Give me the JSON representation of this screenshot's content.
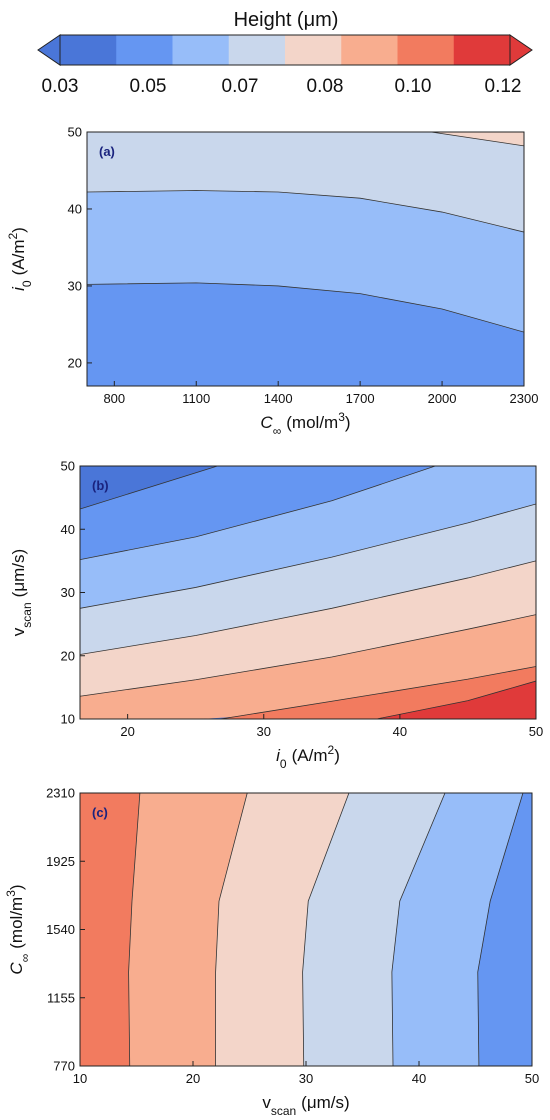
{
  "colorbar": {
    "title": "Height (μm)",
    "tick_labels": [
      "0.03",
      "0.05",
      "0.07",
      "0.08",
      "0.10",
      "0.12"
    ],
    "colors": [
      "#4a76d8",
      "#6596f2",
      "#97bdf9",
      "#c9d7ec",
      "#f3d5c9",
      "#f8ad8f",
      "#f27b5f",
      "#e03a3a"
    ]
  },
  "chart_data": [
    {
      "type": "contour",
      "panel_label": "(a)",
      "xlabel": {
        "main": "C",
        "sub": "∞",
        "units": "(mol/m",
        "sup": "3",
        "tail": ")"
      },
      "ylabel": {
        "main": "i",
        "sub": "0",
        "units": "(A/m",
        "sup": "2",
        "tail": ")"
      },
      "xlim": [
        700,
        2300
      ],
      "ylim": [
        17,
        50
      ],
      "xticks": [
        800,
        1100,
        1400,
        1700,
        2000,
        2300
      ],
      "yticks": [
        20,
        30,
        40,
        50
      ],
      "bands": [
        {
          "level": "0.05–0.06",
          "color": "#6596f2",
          "lower": [
            [
              700,
              17
            ],
            [
              2300,
              17
            ]
          ],
          "upper": [
            [
              700,
              30.2
            ],
            [
              1100,
              30.4
            ],
            [
              1400,
              30
            ],
            [
              1700,
              29
            ],
            [
              2000,
              27
            ],
            [
              2300,
              24
            ]
          ]
        },
        {
          "level": "0.06–0.07",
          "color": "#97bdf9",
          "lower": [
            [
              700,
              30.2
            ],
            [
              1100,
              30.4
            ],
            [
              1400,
              30
            ],
            [
              1700,
              29
            ],
            [
              2000,
              27
            ],
            [
              2300,
              24
            ]
          ],
          "upper": [
            [
              700,
              42.2
            ],
            [
              1100,
              42.4
            ],
            [
              1400,
              42.2
            ],
            [
              1700,
              41.4
            ],
            [
              2000,
              39.6
            ],
            [
              2300,
              37
            ]
          ]
        },
        {
          "level": "0.07–0.08",
          "color": "#c9d7ec",
          "lower": [
            [
              700,
              42.2
            ],
            [
              1100,
              42.4
            ],
            [
              1400,
              42.2
            ],
            [
              1700,
              41.4
            ],
            [
              2000,
              39.6
            ],
            [
              2300,
              37
            ]
          ],
          "upper": [
            [
              700,
              50
            ],
            [
              1960,
              50
            ],
            [
              2300,
              48.2
            ]
          ]
        },
        {
          "level": "0.08–0.09",
          "color": "#f3d5c9",
          "lower": [
            [
              1960,
              50
            ],
            [
              2300,
              48.2
            ]
          ],
          "upper": [
            [
              1960,
              50
            ],
            [
              2300,
              50
            ]
          ]
        }
      ]
    },
    {
      "type": "contour",
      "panel_label": "(b)",
      "xlabel": {
        "main": "i",
        "sub": "0",
        "units": "(A/m",
        "sup": "2",
        "tail": ")"
      },
      "ylabel": {
        "main": "v",
        "sub": "scan",
        "units": "(μm/s)",
        "sup": "",
        "tail": ""
      },
      "xlim": [
        16.5,
        50
      ],
      "ylim": [
        10,
        50
      ],
      "xticks": [
        20,
        30,
        40,
        50
      ],
      "yticks": [
        10,
        20,
        30,
        40,
        50
      ],
      "bands": [
        {
          "level": "0.03–0.04",
          "color": "#4a76d8",
          "lower": [
            [
              16.5,
              43.2
            ],
            [
              26.6,
              50
            ]
          ],
          "upper": [
            [
              16.5,
              50
            ],
            [
              26.6,
              50
            ]
          ]
        },
        {
          "level": "0.04–0.05",
          "color": "#6596f2",
          "lower": [
            [
              16.5,
              35.2
            ],
            [
              25,
              38.8
            ],
            [
              35,
              44.5
            ],
            [
              42.6,
              50
            ]
          ],
          "upper": [
            [
              16.5,
              43.2
            ],
            [
              26.6,
              50
            ],
            [
              42.6,
              50
            ]
          ]
        },
        {
          "level": "0.05–0.06",
          "color": "#97bdf9",
          "lower": [
            [
              16.5,
              27.5
            ],
            [
              25,
              30.8
            ],
            [
              35,
              35.6
            ],
            [
              45,
              41
            ],
            [
              50,
              44
            ]
          ],
          "upper": [
            [
              16.5,
              35.2
            ],
            [
              25,
              38.8
            ],
            [
              35,
              44.5
            ],
            [
              42.6,
              50
            ],
            [
              50,
              50
            ]
          ]
        },
        {
          "level": "0.06–0.07",
          "color": "#c9d7ec",
          "lower": [
            [
              16.5,
              20.2
            ],
            [
              25,
              23.2
            ],
            [
              35,
              27.5
            ],
            [
              45,
              32.3
            ],
            [
              50,
              35
            ]
          ],
          "upper": [
            [
              16.5,
              27.5
            ],
            [
              25,
              30.8
            ],
            [
              35,
              35.6
            ],
            [
              45,
              41
            ],
            [
              50,
              44
            ]
          ]
        },
        {
          "level": "0.07–0.08",
          "color": "#f3d5c9",
          "lower": [
            [
              16.5,
              13.6
            ],
            [
              25,
              16.2
            ],
            [
              35,
              19.8
            ],
            [
              45,
              24.2
            ],
            [
              50,
              26.5
            ]
          ],
          "upper": [
            [
              16.5,
              20.2
            ],
            [
              25,
              23.2
            ],
            [
              35,
              27.5
            ],
            [
              45,
              32.3
            ],
            [
              50,
              35
            ]
          ]
        },
        {
          "level": "0.08–0.09",
          "color": "#f8ad8f",
          "lower": [
            [
              16.5,
              10
            ],
            [
              20,
              10
            ],
            [
              25,
              10
            ],
            [
              28,
              10.4
            ],
            [
              35,
              12.8
            ],
            [
              45,
              16.3
            ],
            [
              50,
              18.3
            ]
          ],
          "upper": [
            [
              16.5,
              13.6
            ],
            [
              25,
              16.2
            ],
            [
              35,
              19.8
            ],
            [
              45,
              24.2
            ],
            [
              50,
              26.5
            ]
          ]
        },
        {
          "level": "0.09–0.10",
          "color": "#f27b5f",
          "lower": [
            [
              26.8,
              10
            ],
            [
              38.3,
              10
            ],
            [
              45,
              12.9
            ],
            [
              50,
              15.5
            ],
            [
              50,
              16
            ]
          ],
          "upper": [
            [
              26.8,
              10
            ],
            [
              28,
              10.4
            ],
            [
              35,
              12.8
            ],
            [
              45,
              16.3
            ],
            [
              50,
              18.3
            ]
          ]
        },
        {
          "level": "0.10–0.11",
          "color": "#e03a3a",
          "lower": [
            [
              38.3,
              10
            ],
            [
              50,
              10
            ]
          ],
          "upper": [
            [
              38.3,
              10
            ],
            [
              45,
              12.9
            ],
            [
              50,
              16
            ]
          ]
        }
      ]
    },
    {
      "type": "contour",
      "panel_label": "(c)",
      "xlabel": {
        "main": "v",
        "sub": "scan",
        "units": "(μm/s)",
        "sup": "",
        "tail": ""
      },
      "ylabel": {
        "main": "C",
        "sub": "∞",
        "units": "(mol/m",
        "sup": "3",
        "tail": ")"
      },
      "xlim": [
        10,
        50
      ],
      "ylim": [
        770,
        2310
      ],
      "xticks": [
        10,
        20,
        30,
        40,
        50
      ],
      "yticks": [
        770,
        1155,
        1540,
        1925,
        2310
      ],
      "vertical_bands": true,
      "boundaries": [
        {
          "color_left": "#f27b5f",
          "color_right": "#f8ad8f",
          "pts": [
            [
              14.4,
              770
            ],
            [
              14.3,
              1300
            ],
            [
              14.6,
              1700
            ],
            [
              15.3,
              2310
            ]
          ]
        },
        {
          "color_left": "#f8ad8f",
          "color_right": "#f3d5c9",
          "pts": [
            [
              22.0,
              770
            ],
            [
              22.0,
              1300
            ],
            [
              22.3,
              1700
            ],
            [
              24.8,
              2310
            ]
          ]
        },
        {
          "color_left": "#f3d5c9",
          "color_right": "#c9d7ec",
          "pts": [
            [
              29.8,
              770
            ],
            [
              29.7,
              1300
            ],
            [
              30.2,
              1700
            ],
            [
              33.8,
              2310
            ]
          ]
        },
        {
          "color_left": "#c9d7ec",
          "color_right": "#97bdf9",
          "pts": [
            [
              37.7,
              770
            ],
            [
              37.6,
              1300
            ],
            [
              38.3,
              1700
            ],
            [
              42.3,
              2310
            ]
          ]
        },
        {
          "color_left": "#97bdf9",
          "color_right": "#6596f2",
          "pts": [
            [
              45.3,
              770
            ],
            [
              45.2,
              1300
            ],
            [
              46.3,
              1700
            ],
            [
              49.2,
              2310
            ]
          ]
        }
      ],
      "band_colors": [
        "#f27b5f",
        "#f8ad8f",
        "#f3d5c9",
        "#c9d7ec",
        "#97bdf9",
        "#6596f2"
      ]
    }
  ]
}
